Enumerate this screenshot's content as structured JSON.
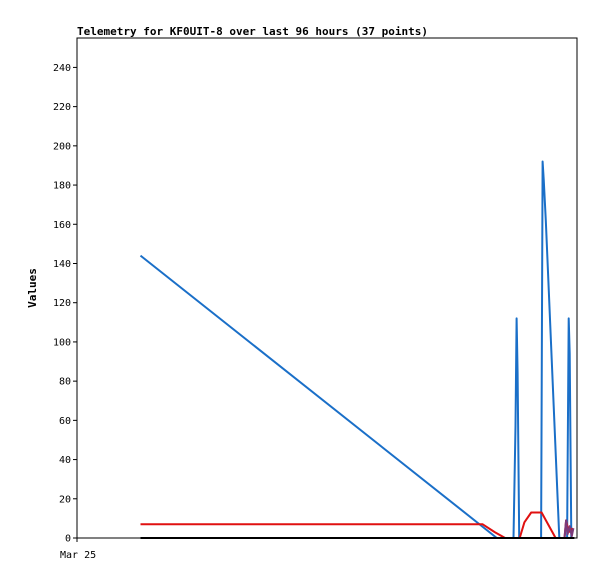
{
  "chart_data": {
    "type": "line",
    "title": "Telemetry for KF0UIT-8 over last 96 hours (37 points)",
    "ylabel": "Values",
    "xlabel": "",
    "ylim": [
      0,
      255
    ],
    "yticks": [
      0,
      20,
      40,
      60,
      80,
      100,
      120,
      140,
      160,
      180,
      200,
      220,
      240
    ],
    "xlim": [
      0,
      96
    ],
    "xticks": [
      {
        "x": 0,
        "label": "Mar 25"
      }
    ],
    "grid": false,
    "legend": "none",
    "series": [
      {
        "color": "#1a6fc8",
        "points": [
          [
            12.2,
            144
          ],
          [
            80.6,
            0
          ],
          [
            83.8,
            0
          ],
          [
            84.2,
            57
          ],
          [
            84.4,
            112
          ],
          [
            84.6,
            84
          ],
          [
            84.9,
            0
          ],
          [
            89.1,
            0
          ],
          [
            89.4,
            192
          ],
          [
            89.6,
            183
          ],
          [
            90.0,
            162
          ],
          [
            92.6,
            0
          ],
          [
            94.1,
            0
          ],
          [
            94.4,
            112
          ],
          [
            94.6,
            94
          ],
          [
            94.9,
            0
          ]
        ]
      },
      {
        "color": "#e01010",
        "points": [
          [
            12.2,
            7
          ],
          [
            77.9,
            7
          ],
          [
            80.2,
            3
          ],
          [
            82.2,
            0
          ],
          [
            85.0,
            0
          ],
          [
            85.9,
            8
          ],
          [
            87.2,
            13
          ],
          [
            89.2,
            13
          ],
          [
            91.9,
            0
          ],
          [
            93.6,
            0
          ],
          [
            93.9,
            9
          ],
          [
            94.4,
            3
          ],
          [
            95.2,
            5
          ]
        ]
      },
      {
        "color": "#7a3a7a",
        "points": [
          [
            93.6,
            0
          ],
          [
            93.9,
            9
          ],
          [
            94.2,
            2
          ],
          [
            94.6,
            6
          ],
          [
            95.0,
            1
          ],
          [
            95.3,
            5
          ]
        ]
      },
      {
        "color": "#000000",
        "points": [
          [
            12.2,
            0
          ],
          [
            95.5,
            0
          ]
        ]
      }
    ]
  }
}
